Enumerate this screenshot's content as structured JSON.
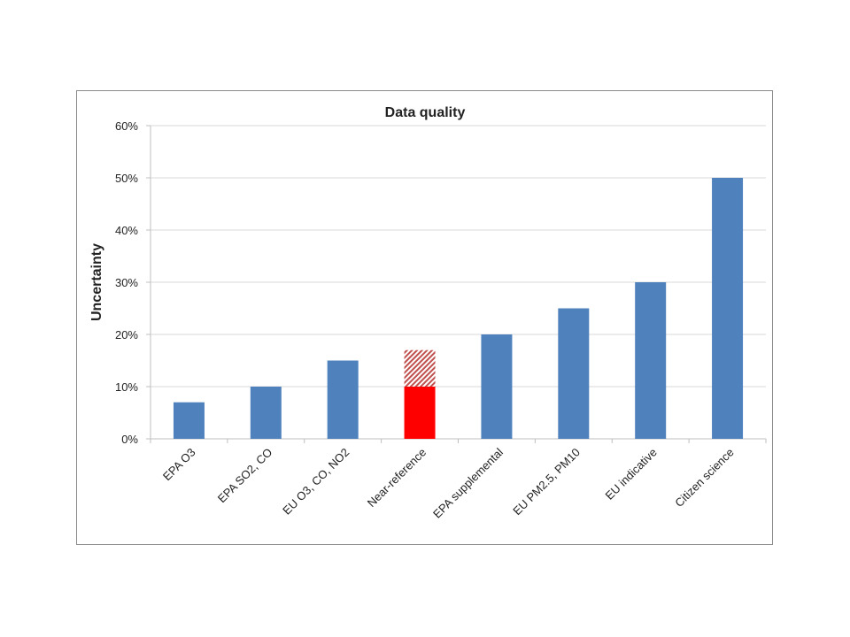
{
  "chart_data": {
    "type": "bar",
    "title": "Data quality",
    "xlabel": "",
    "ylabel": "Uncertainty",
    "ylim": [
      0,
      0.6
    ],
    "yticks": [
      "0%",
      "10%",
      "20%",
      "30%",
      "40%",
      "50%",
      "60%"
    ],
    "grid": true,
    "categories": [
      "EPA O3",
      "EPA SO2, CO",
      "EU O3, CO, NO2",
      "Near-reference",
      "EPA supplemental",
      "EU PM2.5, PM10",
      "EU indicative",
      "Citizen science"
    ],
    "values": [
      0.07,
      0.1,
      0.15,
      0.1,
      0.2,
      0.25,
      0.3,
      0.5
    ],
    "hatched_extension": [
      0,
      0,
      0,
      0.07,
      0,
      0,
      0,
      0
    ],
    "colors": [
      "#4f81bd",
      "#4f81bd",
      "#4f81bd",
      "#ff0000",
      "#4f81bd",
      "#4f81bd",
      "#4f81bd",
      "#4f81bd"
    ],
    "hatch_color": "#c0504d"
  }
}
